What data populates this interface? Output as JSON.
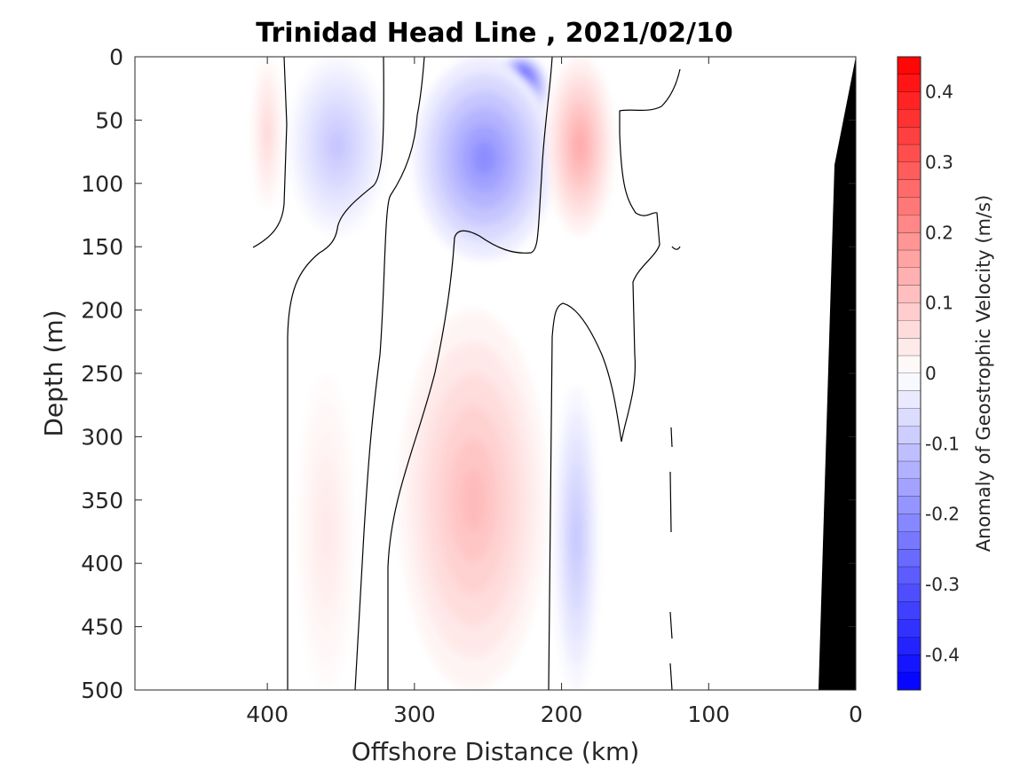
{
  "chart_data": {
    "type": "heatmap",
    "title": "Trinidad Head Line , 2021/02/10",
    "xlabel": "Offshore Distance (km)",
    "ylabel": "Depth (m)",
    "xlim": [
      490,
      0
    ],
    "ylim": [
      0,
      500
    ],
    "x_reversed": true,
    "y_reversed": true,
    "x_ticks": [
      400,
      300,
      200,
      100,
      0
    ],
    "y_ticks": [
      0,
      50,
      100,
      150,
      200,
      250,
      300,
      350,
      400,
      450,
      500
    ],
    "colorbar": {
      "label": "Anomaly of Geostrophic Velocity (m/s)",
      "range": [
        -0.45,
        0.45
      ],
      "level_step": 0.025,
      "ticks": [
        0.4,
        0.3,
        0.2,
        0.1,
        0,
        -0.1,
        -0.2,
        -0.3,
        -0.4
      ],
      "tick_labels": [
        "0.4",
        "0.3",
        "0.2",
        "0.1",
        "0",
        "-0.1",
        "-0.2",
        "-0.3",
        "-0.4"
      ],
      "colormap": "blue-white-red"
    },
    "features": [
      {
        "name": "surface blue core",
        "sign": "negative",
        "x_range": [
          245,
          210
        ],
        "depth_range": [
          0,
          50
        ],
        "peak_value": -0.42,
        "peak_x": 230,
        "peak_depth": 15
      },
      {
        "name": "blue jet around 230 km",
        "sign": "negative",
        "x_range": [
          300,
          205
        ],
        "depth_range": [
          0,
          160
        ],
        "peak_value": -0.2
      },
      {
        "name": "blue offshore lobe",
        "sign": "negative",
        "x_range": [
          385,
          320
        ],
        "depth_range": [
          0,
          140
        ],
        "peak_value": -0.1
      },
      {
        "name": "red band near 190 km",
        "sign": "positive",
        "x_range": [
          210,
          165
        ],
        "depth_range": [
          0,
          140
        ],
        "peak_value": 0.15
      },
      {
        "name": "red lobe near 405 km",
        "sign": "positive",
        "x_range": [
          410,
          390
        ],
        "depth_range": [
          0,
          120
        ],
        "peak_value": 0.07
      },
      {
        "name": "deep red core near 230 km",
        "sign": "positive",
        "x_range": [
          310,
          210
        ],
        "depth_range": [
          200,
          500
        ],
        "peak_value": 0.12
      },
      {
        "name": "deep red near 355 km",
        "sign": "positive",
        "x_range": [
          380,
          340
        ],
        "depth_range": [
          250,
          500
        ],
        "peak_value": 0.04
      },
      {
        "name": "deep blue near 190 km",
        "sign": "negative",
        "x_range": [
          205,
          175
        ],
        "depth_range": [
          260,
          500
        ],
        "peak_value": -0.1
      }
    ],
    "zero_contour_lines": 7,
    "bathymetry": {
      "color": "#000000",
      "seafloor": [
        [
          27,
          500
        ],
        [
          15,
          90
        ],
        [
          0,
          0
        ]
      ]
    }
  },
  "colors": {
    "positive_max": "#ff0000",
    "negative_max": "#0000ff",
    "zero": "#ffffff",
    "contour": "#000000",
    "bathymetry": "#000000",
    "axis": "#262626"
  }
}
